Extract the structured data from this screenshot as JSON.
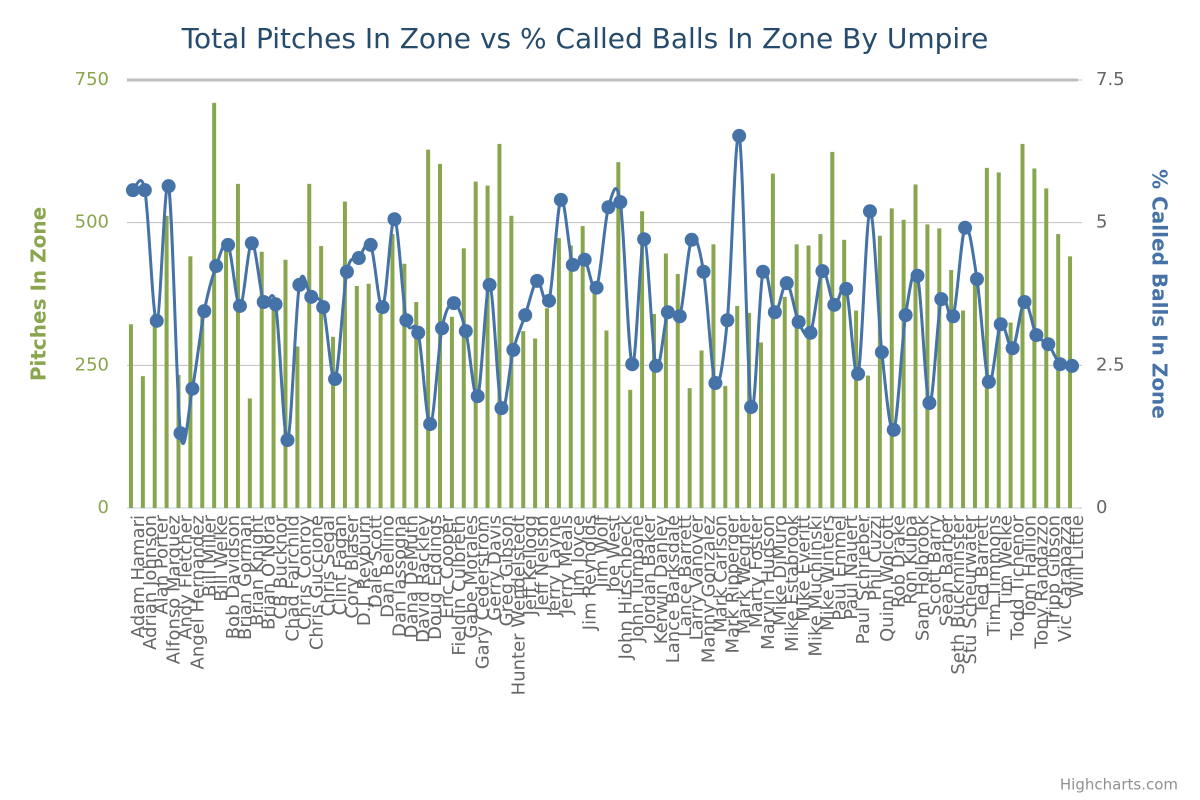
{
  "chart_data": {
    "type": "combo",
    "title": "Total Pitches In Zone vs % Called Balls In Zone By Umpire",
    "credit": "Highcharts.com",
    "categories": [
      "Adam Hamari",
      "Adrian Johnson",
      "Alan Porter",
      "Alfonso Marquez",
      "Andy Fletcher",
      "Angel Hernandez",
      "Bill Miller",
      "Bill Welke",
      "Bob Davidson",
      "Brian Gorman",
      "Brian Knight",
      "Brian O'Nora",
      "CB Bucknor",
      "Chad Fairchild",
      "Chris Conroy",
      "Chris Guccione",
      "Chris Segal",
      "Clint Fagan",
      "Cory Blaser",
      "D.J. Reyburn",
      "Dale Scott",
      "Dan Bellino",
      "Dan Iassogna",
      "Dana DeMuth",
      "David Rackley",
      "Doug Eddings",
      "Eric Cooper",
      "Fieldin Culbreth",
      "Gabe Morales",
      "Gary Cederstrom",
      "Gerry Davis",
      "Greg Gibson",
      "Hunter Wendelstedt",
      "Jeff Kellogg",
      "Jeff Nelson",
      "Jerry Layne",
      "Jerry Meals",
      "Jim Joyce",
      "Jim Reynolds",
      "Jim Wolf",
      "Joe West",
      "John Hirschbeck",
      "John Tumpane",
      "Jordan Baker",
      "Kerwin Danley",
      "Lance Barksdale",
      "Lance Barrett",
      "Larry Vanover",
      "Manny Gonzalez",
      "Mark Carlson",
      "Mark Ripperger",
      "Mark Wegner",
      "Marty Foster",
      "Marvin Hudson",
      "Mike DiMuro",
      "Mike Estabrook",
      "Mike Everitt",
      "Mike Muchlinski",
      "Mike Winters",
      "Paul Emmel",
      "Paul Nauert",
      "Paul Schrieber",
      "Phil Cuzzi",
      "Quinn Wolcott",
      "Rob Drake",
      "Ron Kulpa",
      "Sam Holbrook",
      "Scott Barry",
      "Sean Barber",
      "Seth Buckminster",
      "Stu Scheurwater",
      "Ted Barrett",
      "Tim Timmons",
      "Tim Welke",
      "Todd Tichenor",
      "Tom Hallion",
      "Tony Randazzo",
      "Tripp Gibson",
      "Vic Carapazza",
      "Will Little"
    ],
    "ylabel": "Pitches In Zone",
    "y2label": "% Called Balls In Zone",
    "ylim": [
      0,
      750
    ],
    "yticks": [
      0,
      250,
      500,
      750
    ],
    "y2lim": [
      0,
      7.5
    ],
    "y2ticks": [
      0,
      2.5,
      5,
      7.5
    ],
    "grid": true,
    "series": [
      {
        "name": "Pitches In Zone",
        "type": "column",
        "color": "#89a54e",
        "values": [
          322,
          231,
          340,
          512,
          233,
          441,
          347,
          710,
          460,
          568,
          192,
          449,
          350,
          435,
          283,
          568,
          459,
          300,
          537,
          389,
          393,
          340,
          480,
          428,
          361,
          628,
          603,
          335,
          455,
          572,
          565,
          638,
          512,
          310,
          297,
          350,
          473,
          460,
          494,
          393,
          311,
          606,
          207,
          520,
          340,
          446,
          410,
          210,
          276,
          462,
          214,
          354,
          342,
          290,
          586,
          370,
          462,
          460,
          480,
          624,
          470,
          346,
          232,
          477,
          525,
          505,
          567,
          497,
          490,
          417,
          346,
          400,
          596,
          588,
          325,
          638,
          595,
          560,
          480,
          441
        ]
      },
      {
        "name": "% Called Balls In Zone",
        "type": "spline",
        "axis": "y2",
        "color": "#4572a7",
        "values": [
          5.57,
          5.57,
          3.28,
          5.64,
          1.31,
          2.09,
          3.45,
          4.24,
          4.61,
          3.54,
          4.64,
          3.61,
          3.57,
          1.19,
          3.91,
          3.7,
          3.52,
          2.26,
          4.14,
          4.38,
          4.61,
          3.52,
          5.06,
          3.29,
          3.07,
          1.47,
          3.15,
          3.59,
          3.1,
          1.96,
          3.91,
          1.75,
          2.77,
          3.38,
          3.98,
          3.63,
          5.4,
          4.26,
          4.35,
          3.86,
          5.27,
          5.36,
          2.52,
          4.71,
          2.49,
          3.43,
          3.36,
          4.7,
          4.14,
          2.19,
          3.29,
          6.52,
          1.77,
          4.14,
          3.43,
          3.94,
          3.26,
          3.07,
          4.15,
          3.56,
          3.84,
          2.35,
          5.2,
          2.73,
          1.37,
          3.38,
          4.07,
          1.84,
          3.66,
          3.36,
          4.91,
          4.01,
          2.21,
          3.22,
          2.8,
          3.61,
          3.03,
          2.87,
          2.52,
          2.49
        ]
      }
    ]
  }
}
